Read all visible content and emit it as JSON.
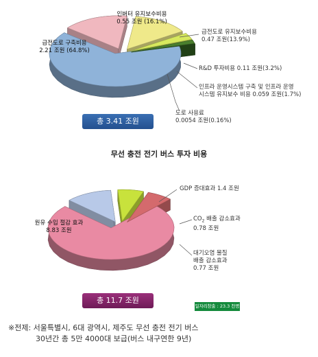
{
  "chart_data": [
    {
      "type": "pie",
      "title": "",
      "total_label": "총 3.41 조원",
      "slices": [
        {
          "name": "급전도로 구축비용",
          "value": 2.21,
          "value_text": "2.21 조원 (64.8%)",
          "percent": 64.8,
          "color": "#8fb3d9"
        },
        {
          "name": "인버터 유지보수비용",
          "value": 0.55,
          "value_text": "0.55 조원 (16.1%)",
          "percent": 16.1,
          "color": "#f0b8bf"
        },
        {
          "name": "급전도로 유지보수비용",
          "value": 0.47,
          "value_text": "0.47 조원(13.9%)",
          "percent": 13.9,
          "color": "#efe98a"
        },
        {
          "name": "R&D 투자비용",
          "value": 0.11,
          "value_text": "0.11 조원(3.2%)",
          "percent": 3.2,
          "color": "#d7e95e"
        },
        {
          "name": "인프라 운영시스템 구축 및 인프라 운영 시스템 유지보수 비용",
          "value": 0.059,
          "value_text": "0.059 조원(1.7%)",
          "percent": 1.7,
          "color": "#4a7f2e"
        },
        {
          "name": "도로 사용료",
          "value": 0.0054,
          "value_text": "0.0054 조원(0.16%)",
          "percent": 0.16,
          "color": "#2f5b1f"
        }
      ]
    },
    {
      "type": "pie",
      "title": "무선 충전 전기 버스 투자 비용",
      "total_label": "총 11.7 조원",
      "slices": [
        {
          "name": "원유 수입 절감 효과",
          "value": 8.83,
          "value_text": "8.83 조원",
          "color": "#e98aa3"
        },
        {
          "name": "GDP 증대효과",
          "value": 1.4,
          "value_text": "1.4 조원",
          "color": "#b8c9e8"
        },
        {
          "name": "CO2 배출 감소효과",
          "value": 0.78,
          "value_text": "0.78 조원",
          "color": "#c8e23c"
        },
        {
          "name": "대기오염 물질 배출 감소효과",
          "value": 0.77,
          "value_text": "0.77 조원",
          "color": "#d46a6d"
        }
      ],
      "note": "일자리창출 : 23.3 천명"
    }
  ],
  "labels": {
    "c1_s0_name": "급전도로 구축비용",
    "c1_s0_val": "2.21 조원 (64.8%)",
    "c1_s1_name": "인버터 유지보수비용",
    "c1_s1_val": "0.55 조원 (16.1%)",
    "c1_s2_name": "급전도로 유지보수비용",
    "c1_s2_val": "0.47 조원(13.9%)",
    "c1_s3_full": "R&D 투자비용 0.11 조원(3.2%)",
    "c1_s4_l1": "인프라 운영시스템 구축 및 인프라 운영",
    "c1_s4_l2": "시스템 유지보수 비용 0.059 조원(1.7%)",
    "c1_s5_name": "도로 사용료",
    "c1_s5_val": "0.0054 조원(0.16%)",
    "c2_s0_name": "원유 수입 절감 효과",
    "c2_s0_val": "8.83 조원",
    "c2_s1_full": "GDP 증대효과 1.4 조원",
    "c2_s2_name_a": "CO",
    "c2_s2_sub": "2",
    "c2_s2_name_b": " 배출 감소효과",
    "c2_s2_val": "0.78 조원",
    "c2_s3_l1": "대기오염 물질",
    "c2_s3_l2": "배출 감소효과",
    "c2_s3_val": "0.77 조원"
  },
  "footnote": {
    "line1": "※전제: 서울특별시, 6대 광역시, 제주도 무선 충전 전기 버스",
    "line2": "30년간 총 5만 4000대 보급(버스 내구연한 9년)"
  }
}
